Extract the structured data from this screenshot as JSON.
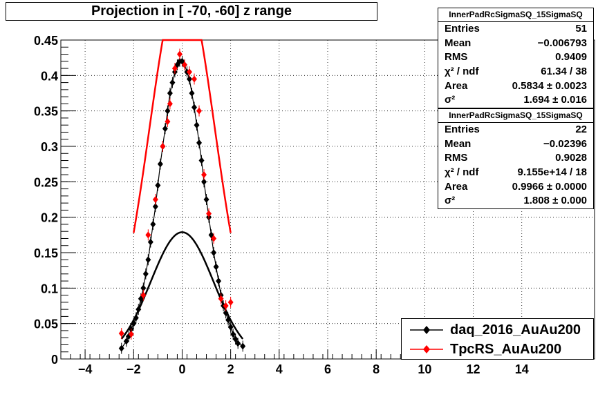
{
  "title": "Projection in [ -70, -60] z range",
  "colors": {
    "series1": "#000000",
    "series2": "#ff0000",
    "fit1": "#000000",
    "fit2": "#ff0000"
  },
  "stats": [
    {
      "name": "InnerPadRcSigmaSQ_15SigmaSQ",
      "rows": [
        {
          "label": "Entries",
          "value": "51"
        },
        {
          "label": "Mean",
          "value": "−0.006793"
        },
        {
          "label": "RMS",
          "value": "0.9409"
        },
        {
          "label": "χ² / ndf",
          "value": "61.34 / 38"
        },
        {
          "label": "Area",
          "value": "0.5834 ± 0.0023"
        },
        {
          "label": "σ²",
          "value": "1.694 ± 0.016"
        }
      ]
    },
    {
      "name": "InnerPadRcSigmaSQ_15SigmaSQ",
      "rows": [
        {
          "label": "Entries",
          "value": "22"
        },
        {
          "label": "Mean",
          "value": "−0.02396"
        },
        {
          "label": "RMS",
          "value": "0.9028"
        },
        {
          "label": "χ² / ndf",
          "value": "9.155e+14 / 18"
        },
        {
          "label": "Area",
          "value": "0.9966 ± 0.0000"
        },
        {
          "label": "σ²",
          "value": "1.808 ± 0.000"
        }
      ]
    }
  ],
  "legend": [
    {
      "label": "daq_2016_AuAu200"
    },
    {
      "label": "TpcRS_AuAu200"
    }
  ],
  "chart_data": {
    "type": "scatter",
    "title": "Projection in [ -70, -60] z range",
    "xlim": [
      -5,
      17
    ],
    "ylim": [
      0,
      0.45
    ],
    "x_ticks": [
      -4,
      -2,
      0,
      2,
      4,
      6,
      8,
      10,
      12,
      14
    ],
    "x_tick_labels": [
      "−4",
      "−2",
      "0",
      "2",
      "4",
      "6",
      "8",
      "10",
      "12",
      "14"
    ],
    "y_ticks": [
      0,
      0.05,
      0.1,
      0.15,
      0.2,
      0.25,
      0.3,
      0.35,
      0.4,
      0.45
    ],
    "y_tick_labels": [
      "0",
      "0.05",
      "0.1",
      "0.15",
      "0.2",
      "0.25",
      "0.3",
      "0.35",
      "0.4",
      "0.45"
    ],
    "grid": true,
    "legend_position": "bottom-right",
    "series": [
      {
        "name": "daq_2016_AuAu200",
        "x": [
          -2.5,
          -2.3,
          -2.2,
          -2.1,
          -2.0,
          -1.9,
          -1.8,
          -1.7,
          -1.6,
          -1.5,
          -1.4,
          -1.3,
          -1.2,
          -1.1,
          -1.0,
          -0.9,
          -0.8,
          -0.7,
          -0.6,
          -0.5,
          -0.4,
          -0.3,
          -0.2,
          -0.1,
          0.0,
          0.1,
          0.2,
          0.3,
          0.4,
          0.5,
          0.6,
          0.7,
          0.8,
          0.9,
          1.0,
          1.1,
          1.2,
          1.3,
          1.4,
          1.5,
          1.6,
          1.7,
          1.8,
          1.9,
          2.0,
          2.1,
          2.2,
          2.3,
          2.5
        ],
        "y": [
          0.015,
          0.025,
          0.032,
          0.042,
          0.05,
          0.058,
          0.07,
          0.085,
          0.1,
          0.12,
          0.14,
          0.165,
          0.19,
          0.215,
          0.245,
          0.275,
          0.3,
          0.325,
          0.35,
          0.375,
          0.39,
          0.405,
          0.415,
          0.42,
          0.42,
          0.415,
          0.405,
          0.395,
          0.375,
          0.355,
          0.33,
          0.305,
          0.28,
          0.25,
          0.225,
          0.2,
          0.175,
          0.15,
          0.13,
          0.11,
          0.09,
          0.075,
          0.065,
          0.055,
          0.045,
          0.035,
          0.028,
          0.022,
          0.018
        ]
      },
      {
        "name": "TpcRS_AuAu200",
        "x": [
          -2.5,
          -2.1,
          -1.6,
          -1.4,
          -1.1,
          -0.8,
          -0.6,
          -0.5,
          -0.3,
          -0.1,
          0.1,
          0.3,
          0.5,
          0.7,
          0.9,
          1.1,
          1.3,
          1.6,
          1.8,
          2.0
        ],
        "y": [
          0.036,
          0.035,
          0.09,
          0.175,
          0.225,
          0.3,
          0.335,
          0.36,
          0.41,
          0.43,
          0.415,
          0.405,
          0.395,
          0.35,
          0.26,
          0.205,
          0.17,
          0.085,
          0.075,
          0.08
        ]
      }
    ],
    "fits": [
      {
        "series": "daq_2016_AuAu200",
        "type": "gaussian",
        "area": 0.5834,
        "sigma2": 1.694
      },
      {
        "series": "TpcRS_AuAu200",
        "type": "gaussian",
        "area": 0.9966,
        "sigma2": 1.808,
        "x_range": [
          -2,
          2
        ]
      }
    ]
  }
}
